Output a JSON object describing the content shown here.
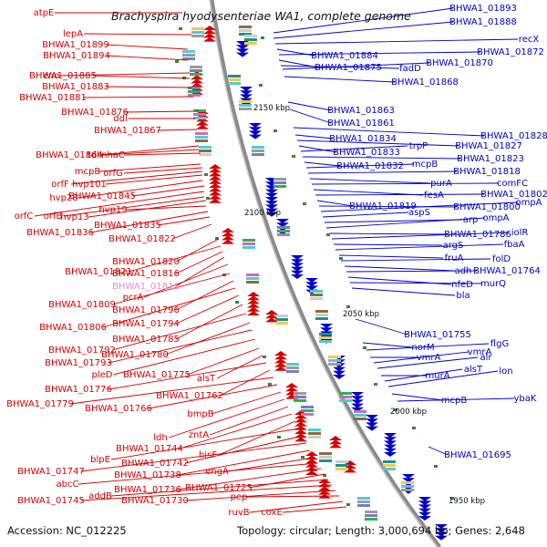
{
  "title": "Brachyspira hyodysenteriae WA1, complete genome",
  "footer": {
    "accession": "Accession: NC_012225",
    "topology": "Topology: circular; Length: 3,000,694 bp; Genes: 2,648"
  },
  "colors": {
    "reverse": "#d40000",
    "forward": "#0000c8",
    "highlight": "#e88ad0",
    "backbone": "#808080"
  },
  "ticks": [
    "2150 kbp",
    "2100 kbp",
    "2050 kbp",
    "2000 kbp",
    "1950 kbp"
  ],
  "left_labels": [
    "atpE",
    "lepA",
    "BHWA1_01899",
    "BHWA1_01894",
    "eno",
    "BHWA1_01885",
    "BHWA1_01883",
    "BHWA1_01881",
    "BHWA1_01876",
    "ddl",
    "BHWA1_01867",
    "BHWA1_01864",
    "tdh",
    "nhaC",
    "mcpB",
    "orfG",
    "orfF",
    "hvp101",
    "hvp28",
    "BHWA1_01845",
    "orfC",
    "orfB",
    "hvp13",
    "hvp19",
    "BHWA1_01836",
    "BHWA1_01835",
    "BHWA1_01822",
    "BHWA1_01820",
    "BHWA1_01821",
    "BHWA1_01816",
    "BHWA1_01811",
    "pcrA",
    "BHWA1_01809",
    "BHWA1_01796",
    "BHWA1_01806",
    "BHWA1_01794",
    "BHWA1_01785",
    "BHWA1_01792",
    "BHWA1_01780",
    "BHWA1_01793",
    "pleD",
    "BHWA1_01775",
    "alsT",
    "BHWA1_01776",
    "BHWA1_01762",
    "BHWA1_01779",
    "BHWA1_01766",
    "bmpB",
    "ldh",
    "zntA",
    "BHWA1_01744",
    "hisF",
    "blpE",
    "BHWA1_01742",
    "BHWA1_01747",
    "BHWA1_01738",
    "engA",
    "abcC",
    "BHWA1_01736",
    "BHWA1_01725",
    "addB",
    "BHWA1_01745",
    "BHWA1_01730",
    "pep",
    "ruvB",
    "coxE"
  ],
  "right_labels": [
    "BHWA1_01893",
    "BHWA1_01888",
    "recX",
    "BHWA1_01884",
    "BHWA1_01872",
    "BHWA1_01875",
    "fadD",
    "BHWA1_01870",
    "BHWA1_01868",
    "BHWA1_01863",
    "BHWA1_01861",
    "BHWA1_01828",
    "BHWA1_01834",
    "BHWA1_01827",
    "BHWA1_01833",
    "trpP",
    "BHWA1_01823",
    "BHWA1_01832",
    "mcpB",
    "BHWA1_01818",
    "purA",
    "comFC",
    "fesA",
    "BHWA1_01802",
    "BHWA1_01819",
    "BHWA1_01800",
    "ompA",
    "aspS",
    "arp",
    "ompA",
    "BHWA1_01786",
    "iolR",
    "argS",
    "fbaA",
    "fruA",
    "folD",
    "adh",
    "BHWA1_01764",
    "nfeD",
    "murQ",
    "bla",
    "BHWA1_01755",
    "norM",
    "flgG",
    "vmrA",
    "vmrA",
    "alr",
    "murA",
    "alsT",
    "lon",
    "mcpB",
    "ybaK",
    "BHWA1_01695"
  ]
}
